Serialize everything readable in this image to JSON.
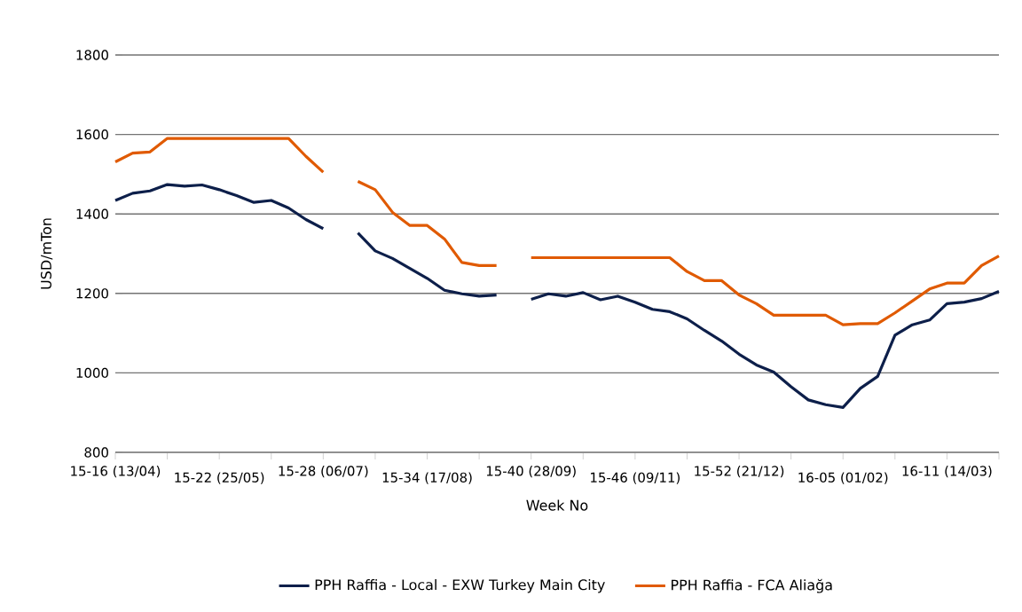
{
  "chart_data": {
    "type": "line",
    "xlabel": "Week No",
    "ylabel": "USD/mTon",
    "categories": [
      "15-16 (13/04)",
      null,
      null,
      null,
      null,
      null,
      "15-22 (25/05)",
      null,
      null,
      null,
      null,
      null,
      "15-28 (06/07)",
      null,
      null,
      null,
      null,
      null,
      "15-34 (17/08)",
      null,
      null,
      null,
      null,
      null,
      "15-40 (28/09)",
      null,
      null,
      null,
      null,
      null,
      "15-46 (09/11)",
      null,
      null,
      null,
      null,
      null,
      "15-52 (21/12)",
      null,
      null,
      null,
      null,
      null,
      "16-05 (01/02)",
      null,
      null,
      null,
      null,
      null,
      "16-11 (14/03)",
      null,
      null,
      null
    ],
    "series": [
      {
        "name": "PPH Raffia - Local - EXW Turkey Main City",
        "color": "#0d1f4a",
        "values": [
          1434,
          1452,
          1458,
          1474,
          1470,
          1473,
          1461,
          1446,
          1429,
          1434,
          1415,
          1386,
          1363,
          null,
          1352,
          1307,
          1288,
          1263,
          1238,
          1208,
          1199,
          1193,
          1196,
          null,
          1185,
          1199,
          1193,
          1202,
          1184,
          1193,
          1178,
          1160,
          1154,
          1136,
          1107,
          1080,
          1047,
          1020,
          1002,
          965,
          932,
          920,
          913,
          961,
          991,
          1095,
          1121,
          1133,
          1174,
          1178,
          1187,
          1205
        ]
      },
      {
        "name": "PPH Raffia - FCA Aliağa",
        "color": "#e05a00",
        "values": [
          1531,
          1553,
          1556,
          1590,
          1590,
          1590,
          1590,
          1590,
          1590,
          1590,
          1590,
          1545,
          1505,
          null,
          1482,
          1461,
          1404,
          1371,
          1371,
          1337,
          1278,
          1270,
          1270,
          null,
          1290,
          1290,
          1290,
          1290,
          1290,
          1290,
          1290,
          1290,
          1290,
          1255,
          1232,
          1232,
          1196,
          1174,
          1145,
          1145,
          1145,
          1145,
          1121,
          1124,
          1124,
          1151,
          1181,
          1211,
          1226,
          1226,
          1270,
          1294
        ]
      }
    ],
    "ylim": [
      800,
      1800
    ],
    "yticks": [
      800,
      1000,
      1200,
      1400,
      1600,
      1800
    ],
    "grid": "y",
    "legend": "bottom",
    "marker": "none",
    "line_style": "solid"
  }
}
